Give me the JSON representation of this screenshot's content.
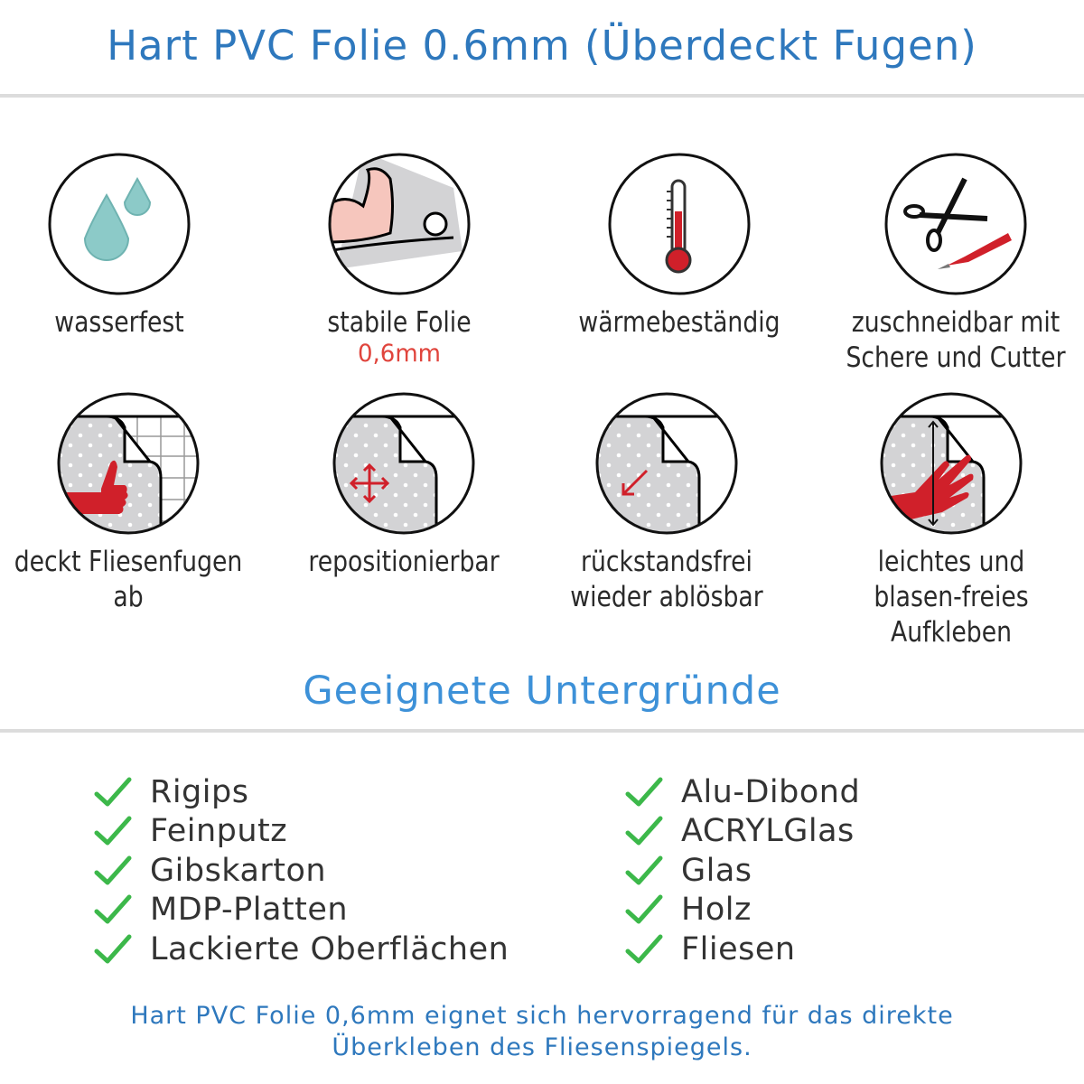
{
  "header": {
    "title": "Hart PVC Folie 0.6mm (Überdeckt Fugen)"
  },
  "features": [
    {
      "icon": "water-drops-icon",
      "label": "wasserfest"
    },
    {
      "icon": "muscle-arm-icon",
      "label": "stabile Folie",
      "sublabel": "0,6mm"
    },
    {
      "icon": "thermometer-icon",
      "label": "wärmebeständig"
    },
    {
      "icon": "scissors-cutter-icon",
      "label": "zuschneidbar mit Schere und Cutter"
    },
    {
      "icon": "thumbs-up-tiles-icon",
      "label": "deckt Fliesenfugen ab"
    },
    {
      "icon": "move-arrows-icon",
      "label": "repositionierbar"
    },
    {
      "icon": "peel-off-arrow-icon",
      "label": "rückstandsfrei wieder ablösbar"
    },
    {
      "icon": "hand-smoothing-icon",
      "label": "leichtes und blasen-freies Aufkleben"
    }
  ],
  "surfaces": {
    "title": "Geeignete Untergründe",
    "left": [
      "Rigips",
      "Feinputz",
      "Gibskarton",
      "MDP-Platten",
      "Lackierte Oberflächen"
    ],
    "right": [
      "Alu-Dibond",
      "ACRYLGlas",
      "Glas",
      "Holz",
      "Fliesen"
    ]
  },
  "footer": {
    "line1": "Hart PVC Folie 0,6mm eignet sich hervorragend für das direkte",
    "line2": "Überkleben des Fliesenspiegels."
  },
  "colors": {
    "title": "#2e78bd",
    "accent_red": "#d0202a",
    "check": "#3cb84a",
    "water": "#8ccac8"
  }
}
